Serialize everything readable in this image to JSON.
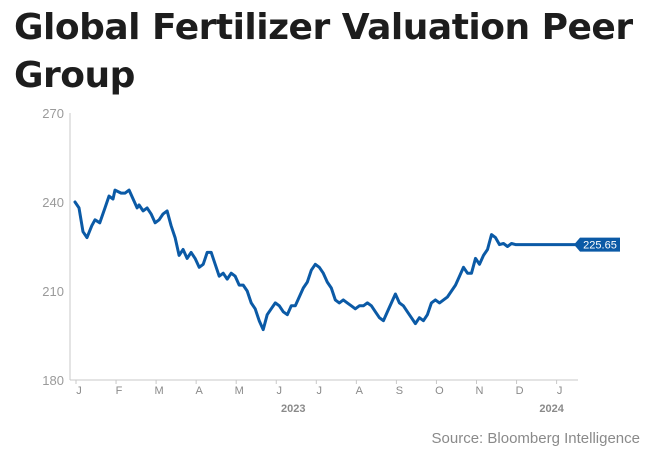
{
  "chart_data": {
    "type": "line",
    "title": "Global Fertilizer Valuation Peer Group",
    "source": "Source: Bloomberg Intelligence",
    "ylim": [
      180,
      270
    ],
    "yticks": [
      "270",
      "240",
      "210",
      "180"
    ],
    "ytick_values": [
      270,
      240,
      210,
      180
    ],
    "xlim": [
      0,
      13.3
    ],
    "xticks": [
      {
        "label": "J",
        "month": 0
      },
      {
        "label": "F",
        "month": 1
      },
      {
        "label": "M",
        "month": 2
      },
      {
        "label": "A",
        "month": 3
      },
      {
        "label": "M",
        "month": 4
      },
      {
        "label": "J",
        "month": 5
      },
      {
        "label": "J",
        "month": 6
      },
      {
        "label": "A",
        "month": 7
      },
      {
        "label": "S",
        "month": 8
      },
      {
        "label": "O",
        "month": 9
      },
      {
        "label": "N",
        "month": 10
      },
      {
        "label": "D",
        "month": 11
      },
      {
        "label": "J",
        "month": 12
      }
    ],
    "year_labels": [
      {
        "label": "2023",
        "month": 5.55
      },
      {
        "label": "2024",
        "month": 12
      }
    ],
    "end_value_label": "225.65",
    "grid": false,
    "legend": "none",
    "line_color": "#0b5aa6",
    "series": [
      {
        "x": [
          0,
          0.1,
          0.2,
          0.3,
          0.42,
          0.5,
          0.62,
          0.75,
          0.85,
          0.95,
          1.0,
          1.15,
          1.25,
          1.35,
          1.45,
          1.55,
          1.6,
          1.7,
          1.8,
          1.9,
          2.0,
          2.1,
          2.2,
          2.3,
          2.4,
          2.5,
          2.6,
          2.7,
          2.8,
          2.9,
          3.0,
          3.1,
          3.2,
          3.3,
          3.4,
          3.5,
          3.6,
          3.7,
          3.8,
          3.9,
          4.0,
          4.1,
          4.2,
          4.3,
          4.4,
          4.5,
          4.6,
          4.7,
          4.8,
          4.9,
          5.0,
          5.1,
          5.2,
          5.3,
          5.4,
          5.5,
          5.6,
          5.7,
          5.8,
          5.9,
          6.0,
          6.1,
          6.2,
          6.3,
          6.4,
          6.5,
          6.6,
          6.7,
          6.8,
          6.9,
          7.0,
          7.1,
          7.2,
          7.3,
          7.4,
          7.5,
          7.6,
          7.7,
          7.8,
          7.9,
          8.0,
          8.1,
          8.2,
          8.3,
          8.4,
          8.5,
          8.6,
          8.7,
          8.8,
          8.9,
          9.0,
          9.1,
          9.2,
          9.3,
          9.4,
          9.5,
          9.6,
          9.7,
          9.8,
          9.9,
          10.0,
          10.1,
          10.2,
          10.3,
          10.4,
          10.5,
          10.6,
          10.7,
          10.8,
          10.9,
          11.0,
          11.1,
          11.2,
          11.3,
          11.4,
          11.5,
          11.6,
          11.7,
          11.8,
          11.9,
          12.0,
          12.1,
          12.2,
          12.3,
          12.4,
          12.5
        ],
        "y": [
          240,
          238,
          230,
          228,
          232,
          234,
          233,
          238,
          242,
          241,
          244,
          243,
          243,
          244,
          241,
          238,
          239,
          237,
          238,
          236,
          233,
          234,
          236,
          237,
          232,
          228,
          222,
          224,
          221,
          223,
          221,
          218,
          219,
          223,
          223,
          219,
          215,
          216,
          214,
          216,
          215,
          212,
          212,
          210,
          206,
          204,
          200,
          197,
          202,
          204,
          206,
          205,
          203,
          202,
          205,
          205,
          208,
          211,
          213,
          217,
          219,
          218,
          216,
          213,
          211,
          207,
          206,
          207,
          206,
          205,
          204,
          205,
          205,
          206,
          205,
          203,
          201,
          200,
          203,
          206,
          209,
          206,
          205,
          203,
          201,
          199,
          201,
          200,
          202,
          206,
          207,
          206,
          207,
          208,
          210,
          212,
          215,
          218,
          216,
          216,
          221,
          219,
          222,
          224,
          229,
          228,
          225.65,
          226,
          225,
          226,
          225.65,
          225.65,
          225.65,
          225.65,
          225.65,
          225.65,
          225.65,
          225.65,
          225.65,
          225.65,
          225.65,
          225.65,
          225.65,
          225.65,
          225.65,
          225.65
        ]
      }
    ]
  }
}
